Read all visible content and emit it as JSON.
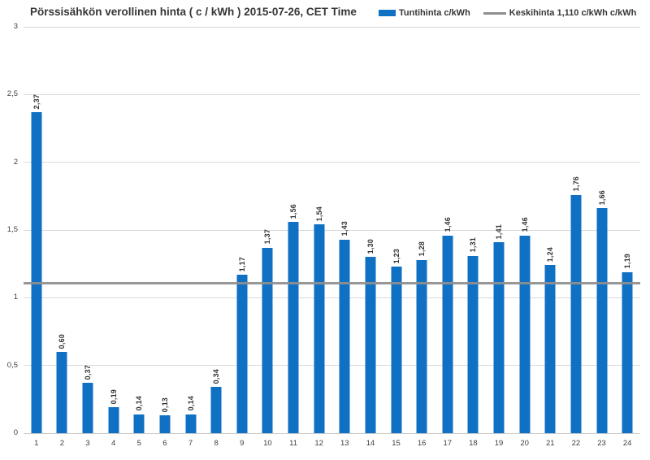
{
  "chart_data": {
    "type": "bar",
    "title": "Pörssisähkön verollinen hinta ( c / kWh ) 2015-07-26, CET Time",
    "series_name": "Tuntihinta c/kWh",
    "categories": [
      "1",
      "2",
      "3",
      "4",
      "5",
      "6",
      "7",
      "8",
      "9",
      "10",
      "11",
      "12",
      "13",
      "14",
      "15",
      "16",
      "17",
      "18",
      "19",
      "20",
      "21",
      "22",
      "23",
      "24"
    ],
    "values": [
      2.37,
      0.6,
      0.37,
      0.19,
      0.14,
      0.13,
      0.14,
      0.34,
      1.17,
      1.37,
      1.56,
      1.54,
      1.43,
      1.3,
      1.23,
      1.28,
      1.46,
      1.31,
      1.41,
      1.46,
      1.24,
      1.76,
      1.66,
      1.19
    ],
    "value_labels": [
      "2,37",
      "0,60",
      "0,37",
      "0,19",
      "0,14",
      "0,13",
      "0,14",
      "0,34",
      "1,17",
      "1,37",
      "1,56",
      "1,54",
      "1,43",
      "1,30",
      "1,23",
      "1,28",
      "1,46",
      "1,31",
      "1,41",
      "1,46",
      "1,24",
      "1,76",
      "1,66",
      "1,19"
    ],
    "average_line": {
      "value": 1.11,
      "label": "Keskihinta 1,110 c/kWh c/kWh"
    },
    "xlabel": "",
    "ylabel": "",
    "ylim": [
      0,
      3
    ],
    "y_ticks": [
      {
        "value": 0,
        "label": "0"
      },
      {
        "value": 0.5,
        "label": "0,5"
      },
      {
        "value": 1,
        "label": "1"
      },
      {
        "value": 1.5,
        "label": "1,5"
      },
      {
        "value": 2,
        "label": "2"
      },
      {
        "value": 2.5,
        "label": "2,5"
      },
      {
        "value": 3,
        "label": "3"
      }
    ],
    "grid": true,
    "legend_position": "top-right",
    "colors": {
      "bar": "#0F70C4",
      "average_line": "#8F8F8F",
      "gridline": "#D9D9D9",
      "axis_line": "#C9C9C9",
      "text": "#404040"
    }
  }
}
